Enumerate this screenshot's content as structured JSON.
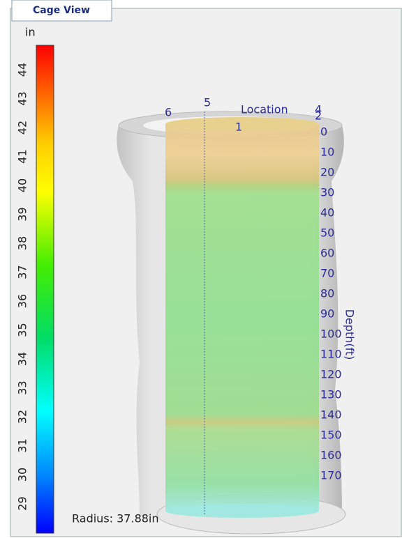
{
  "tab": {
    "title": "Cage View"
  },
  "colorbar": {
    "unit": "in",
    "ticks": [
      44,
      43,
      42,
      41,
      40,
      39,
      38,
      37,
      36,
      35,
      34,
      33,
      32,
      31,
      30,
      29
    ]
  },
  "view": {
    "location_title": "Location",
    "locations": [
      "6",
      "5",
      "4",
      "2",
      "1"
    ],
    "depth_title": "Depth(ft)",
    "depth_labels": [
      "0",
      "10",
      "20",
      "30",
      "40",
      "50",
      "60",
      "70",
      "80",
      "90",
      "100",
      "110",
      "120",
      "130",
      "140",
      "150",
      "160",
      "170"
    ],
    "radius": "Radius: 37.88in"
  }
}
